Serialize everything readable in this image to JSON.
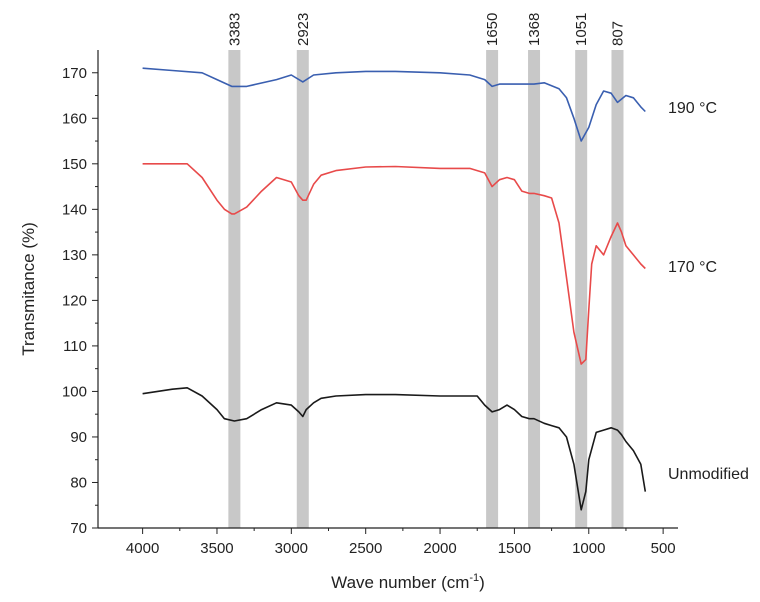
{
  "chart_data": {
    "type": "line",
    "xlabel": "Wave number (cm",
    "xlabel_sup": "-1",
    "xlabel_end": ")",
    "ylabel": "Transmitance (%)",
    "xlim": [
      4300,
      400
    ],
    "ylim": [
      70,
      175
    ],
    "x_ticks": [
      4000,
      3500,
      3000,
      2500,
      2000,
      1500,
      1000,
      500
    ],
    "y_ticks": [
      70,
      80,
      90,
      100,
      110,
      120,
      130,
      140,
      150,
      160,
      170
    ],
    "grid": false,
    "bands": [
      {
        "label": "3383",
        "x": 3383
      },
      {
        "label": "2923",
        "x": 2923
      },
      {
        "label": "1650",
        "x": 1650
      },
      {
        "label": "1368",
        "x": 1368
      },
      {
        "label": "1051",
        "x": 1051
      },
      {
        "label": "807",
        "x": 807
      }
    ],
    "series": [
      {
        "name": "190 °C",
        "color": "#3a5fb0",
        "x": [
          4000,
          3800,
          3600,
          3500,
          3400,
          3300,
          3100,
          3000,
          2923,
          2850,
          2700,
          2500,
          2300,
          2000,
          1800,
          1700,
          1650,
          1600,
          1500,
          1400,
          1368,
          1300,
          1200,
          1150,
          1100,
          1051,
          1000,
          950,
          900,
          850,
          807,
          750,
          700,
          650,
          620
        ],
        "y": [
          171,
          170.5,
          170,
          168.5,
          167,
          167,
          168.5,
          169.5,
          168,
          169.5,
          170,
          170.3,
          170.3,
          170,
          169.5,
          168.5,
          167,
          167.5,
          167.5,
          167.5,
          167.5,
          167.8,
          166.5,
          164.5,
          160,
          155,
          158,
          163,
          166,
          165.5,
          163.5,
          165,
          164.5,
          162.5,
          161.5
        ]
      },
      {
        "name": "170 °C",
        "color": "#e84a4a",
        "x": [
          4000,
          3800,
          3700,
          3600,
          3500,
          3450,
          3400,
          3383,
          3300,
          3200,
          3100,
          3000,
          2950,
          2923,
          2900,
          2850,
          2800,
          2700,
          2500,
          2300,
          2000,
          1800,
          1700,
          1650,
          1600,
          1550,
          1500,
          1450,
          1400,
          1368,
          1300,
          1250,
          1200,
          1150,
          1100,
          1051,
          1020,
          1000,
          980,
          950,
          900,
          850,
          807,
          780,
          750,
          700,
          650,
          620
        ],
        "y": [
          150,
          150,
          150,
          147,
          142,
          140,
          139,
          139,
          140.5,
          144,
          147,
          146,
          143,
          142,
          142,
          145.5,
          147.5,
          148.5,
          149.3,
          149.4,
          149,
          149,
          148,
          145,
          146.5,
          147,
          146.5,
          144,
          143.5,
          143.5,
          143,
          142.5,
          137,
          125,
          113,
          106,
          107,
          118,
          128,
          132,
          130,
          134,
          137,
          135,
          132,
          130,
          128,
          127
        ]
      },
      {
        "name": "Unmodified",
        "color": "#1a1a1a",
        "x": [
          4000,
          3900,
          3800,
          3700,
          3600,
          3500,
          3450,
          3383,
          3300,
          3200,
          3100,
          3000,
          2950,
          2923,
          2900,
          2850,
          2800,
          2700,
          2500,
          2300,
          2000,
          1800,
          1750,
          1700,
          1650,
          1600,
          1550,
          1500,
          1450,
          1400,
          1368,
          1300,
          1250,
          1200,
          1150,
          1100,
          1051,
          1020,
          1000,
          950,
          900,
          850,
          807,
          780,
          750,
          700,
          650,
          620
        ],
        "y": [
          99.5,
          100,
          100.5,
          100.8,
          99,
          96,
          94,
          93.5,
          94,
          96,
          97.5,
          97,
          95.5,
          94.5,
          96,
          97.5,
          98.5,
          99,
          99.3,
          99.3,
          99,
          99,
          99,
          97,
          95.5,
          96,
          97,
          96,
          94.5,
          94,
          94,
          93,
          92.5,
          92,
          90,
          84,
          74,
          78,
          85,
          91,
          91.5,
          92,
          91.5,
          90.5,
          89,
          87,
          84,
          78
        ]
      }
    ]
  }
}
